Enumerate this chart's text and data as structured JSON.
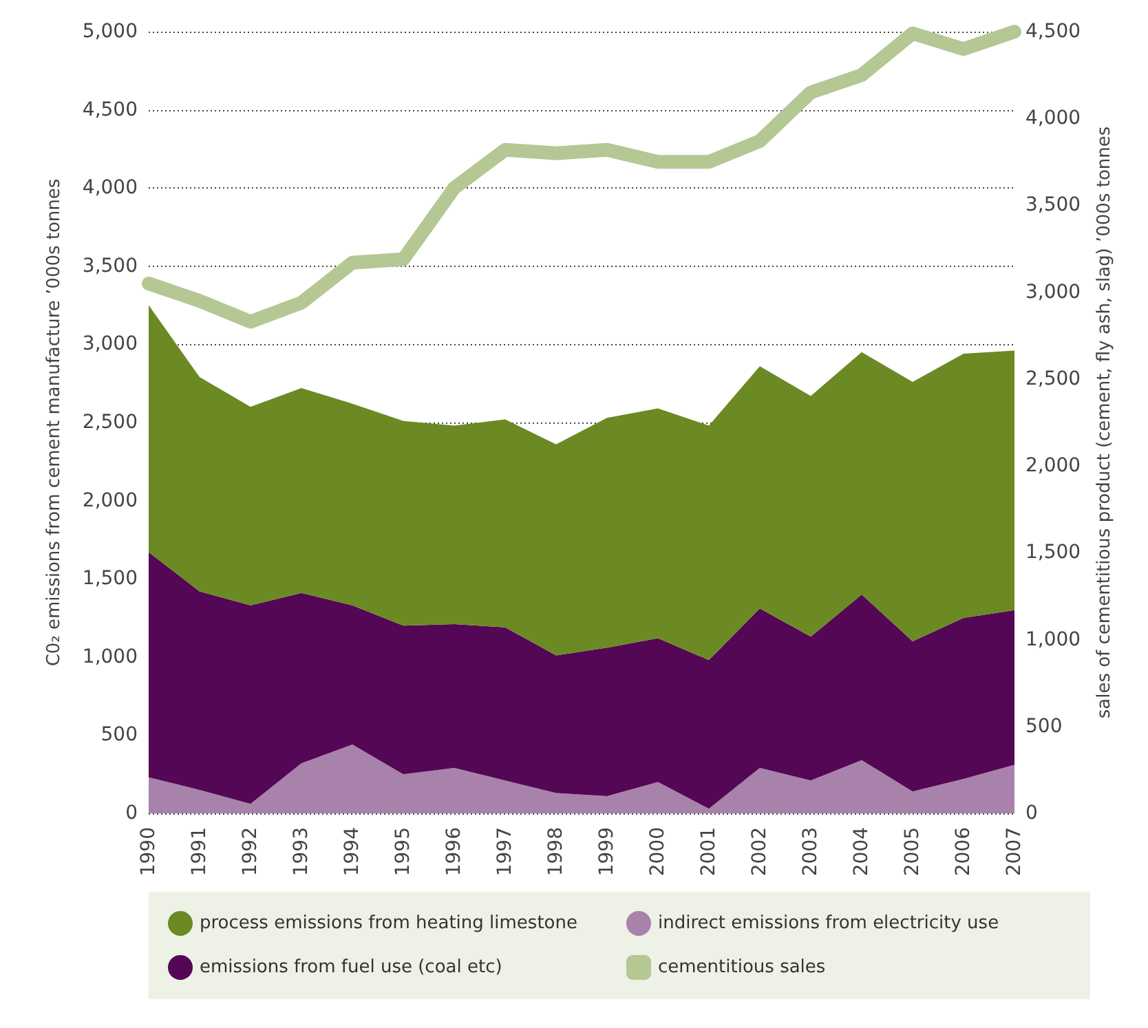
{
  "chart_data": {
    "type": "area",
    "stacked": true,
    "categories": [
      "1990",
      "1991",
      "1992",
      "1993",
      "1994",
      "1995",
      "1996",
      "1997",
      "1998",
      "1999",
      "2000",
      "2001",
      "2002",
      "2003",
      "2004",
      "2005",
      "2006",
      "2007"
    ],
    "ylabel": "C0₂ emissions from cement manufacture ’000s tonnes",
    "y2label": "sales of cementitious product (cement, fly ash, slag) ’000s tonnes",
    "ylim": [
      0,
      5000
    ],
    "yticks": [
      0,
      500,
      {
        "value": 1000,
        "label": "1,000"
      },
      {
        "value": 1500,
        "label": "1,500"
      },
      {
        "value": 2000,
        "label": "2,000"
      },
      {
        "value": 2500,
        "label": "2,500"
      },
      {
        "value": 3000,
        "label": "3,000"
      },
      {
        "value": 3500,
        "label": "3,500"
      },
      {
        "value": 4000,
        "label": "4,000"
      },
      {
        "value": 4500,
        "label": "4,500"
      },
      {
        "value": 5000,
        "label": "5,000"
      }
    ],
    "y2lim": [
      0,
      4500
    ],
    "y2ticks": [
      0,
      500,
      {
        "value": 1000,
        "label": "1,000"
      },
      {
        "value": 1500,
        "label": "1,500"
      },
      {
        "value": 2000,
        "label": "2,000"
      },
      {
        "value": 2500,
        "label": "2,500"
      },
      {
        "value": 3000,
        "label": "3,000"
      },
      {
        "value": 3500,
        "label": "3,500"
      },
      {
        "value": 4000,
        "label": "4,000"
      },
      {
        "value": 4500,
        "label": "4,500"
      }
    ],
    "grid": "y",
    "legend": "bottom",
    "marker": "none",
    "series": [
      {
        "name": "indirect emissions from electricity use",
        "color": "#a882ab",
        "values": [
          230,
          150,
          60,
          320,
          440,
          250,
          290,
          210,
          130,
          110,
          200,
          30,
          290,
          210,
          340,
          140,
          220,
          310
        ]
      },
      {
        "name": "emissions from fuel use (coal etc)",
        "color": "#540755",
        "values": [
          1440,
          1270,
          1270,
          1090,
          890,
          950,
          920,
          980,
          880,
          950,
          920,
          950,
          1020,
          920,
          1060,
          960,
          1030,
          990
        ]
      },
      {
        "name": "process emissions from heating limestone",
        "color": "#6b8a23",
        "values": [
          1580,
          1370,
          1270,
          1310,
          1290,
          1310,
          1270,
          1330,
          1350,
          1470,
          1470,
          1500,
          1550,
          1540,
          1550,
          1660,
          1690,
          1660
        ]
      },
      {
        "name": "cementitious sales",
        "type": "line",
        "axis": "y2",
        "color": "#b5c793",
        "values": [
          3050,
          2950,
          2830,
          2940,
          3170,
          3190,
          3600,
          3820,
          3800,
          3820,
          3750,
          3750,
          3870,
          4150,
          4250,
          4490,
          4400,
          4500
        ]
      }
    ]
  }
}
